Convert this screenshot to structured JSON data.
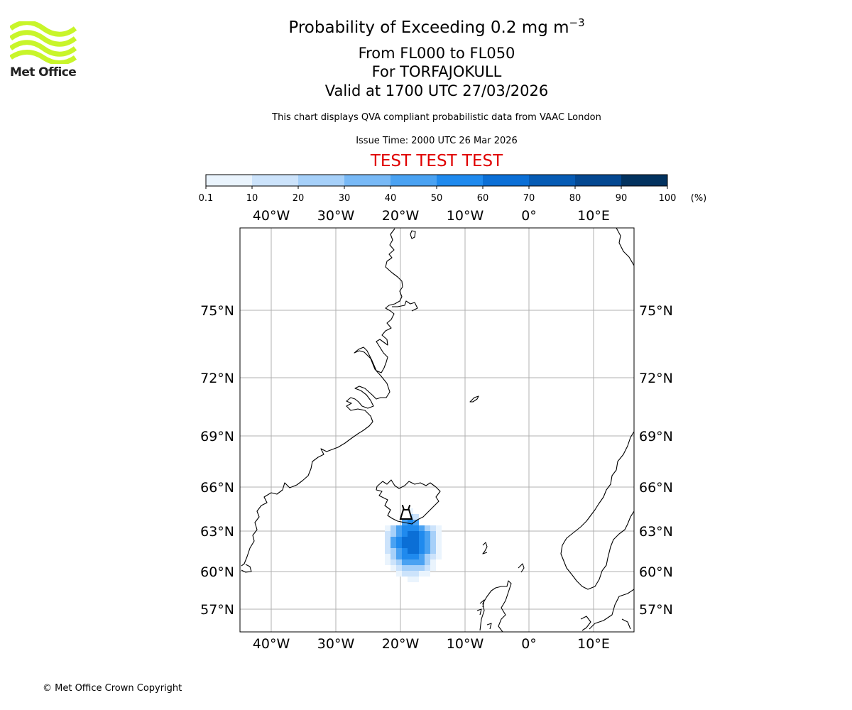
{
  "header": {
    "title_prefix": "Probability of Exceeding 0.2 mg m",
    "title_exponent": "−3",
    "flight_levels": "From FL000 to FL050",
    "volcano": "For TORFAJOKULL",
    "valid_time": "Valid at 1700 UTC 27/03/2026",
    "description": "This chart displays QVA compliant probabilistic data from VAAC London",
    "issue_time": "Issue Time: 2000 UTC 26 Mar 2026",
    "test_banner": "TEST TEST TEST"
  },
  "logo": {
    "text": "Met Office",
    "color": "#c8f52a"
  },
  "colorbar": {
    "ticks": [
      "0.1",
      "10",
      "20",
      "30",
      "40",
      "50",
      "60",
      "70",
      "80",
      "90",
      "100"
    ],
    "unit": "(%)",
    "colors": [
      "#eaf4fd",
      "#cce3fb",
      "#a6d0f9",
      "#78b9f6",
      "#4aa2f2",
      "#1f8aee",
      "#0b6fd6",
      "#065bb4",
      "#044891",
      "#02325f"
    ]
  },
  "map": {
    "lon_labels": [
      "40°W",
      "30°W",
      "20°W",
      "10°W",
      "0°",
      "10°E"
    ],
    "lat_labels": [
      "75°N",
      "72°N",
      "69°N",
      "66°N",
      "63°N",
      "60°N",
      "57°N"
    ],
    "volcano_marker": "volcano-symbol"
  },
  "footer": {
    "copyright": "© Met Office Crown Copyright"
  }
}
